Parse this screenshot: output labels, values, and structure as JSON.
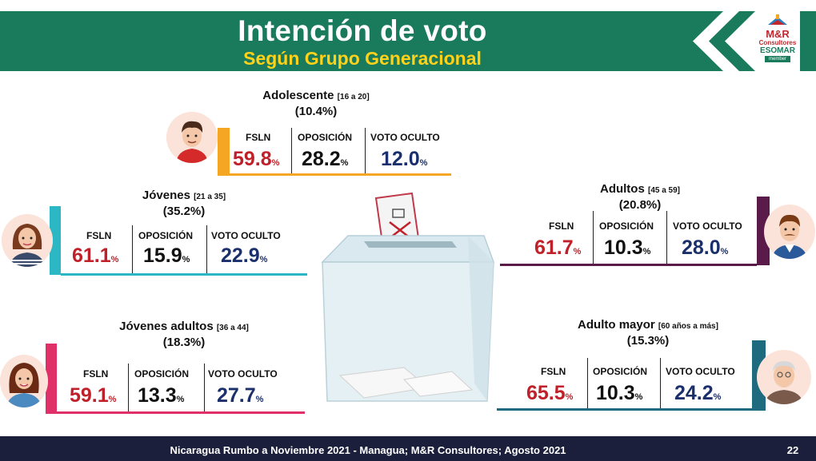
{
  "header": {
    "title": "Intención de voto",
    "subtitle": "Según Grupo Generacional",
    "logo_line1": "M&R",
    "logo_line2": "Consultores",
    "logo_line3": "ESOMAR",
    "logo_line4": "member"
  },
  "footer": {
    "source": "Nicaragua Rumbo a Noviembre 2021 - Managua; M&R Consultores; Agosto 2021",
    "page": "22"
  },
  "colors": {
    "header_green": "#1a7a5c",
    "subtitle_yellow": "#ffd21a",
    "fsln_red": "#c0202a",
    "oculto_blue": "#1a2f6b",
    "footer_navy": "#1b1f3b",
    "adolescente_accent": "#f5a623",
    "jovenes_accent": "#2bb8c4",
    "jovenes_adultos_accent": "#e0306a",
    "adultos_accent": "#5a1a4a",
    "adulto_mayor_accent": "#1e6b80"
  },
  "chart_data": {
    "type": "table",
    "unit": "%",
    "columns": [
      "FSLN",
      "OPOSICIÓN",
      "VOTO OCULTO"
    ],
    "groups": [
      {
        "name": "Adolescente",
        "range": "[16 a 20]",
        "share": "(10.4%)",
        "values": [
          59.8,
          28.2,
          12.0
        ]
      },
      {
        "name": "Jóvenes",
        "range": "[21 a 35]",
        "share": "(35.2%)",
        "values": [
          61.1,
          15.9,
          22.9
        ]
      },
      {
        "name": "Jóvenes adultos",
        "range": "[36 a 44]",
        "share": "(18.3%)",
        "values": [
          59.1,
          13.3,
          27.7
        ]
      },
      {
        "name": "Adultos",
        "range": "[45 a 59]",
        "share": "(20.8%)",
        "values": [
          61.7,
          10.3,
          28.0
        ]
      },
      {
        "name": "Adulto mayor",
        "range": "[60 años a más]",
        "share": "(15.3%)",
        "values": [
          65.5,
          10.3,
          24.2
        ]
      }
    ]
  },
  "display": {
    "adolescente": {
      "v0": "59.8",
      "v1": "28.2",
      "v2": "12.0"
    },
    "jovenes": {
      "v0": "61.1",
      "v1": "15.9",
      "v2": "22.9"
    },
    "jovenes_adultos": {
      "v0": "59.1",
      "v1": "13.3",
      "v2": "27.7"
    },
    "adultos": {
      "v0": "61.7",
      "v1": "10.3",
      "v2": "28.0"
    },
    "adulto_mayor": {
      "v0": "65.5",
      "v1": "10.3",
      "v2": "24.2"
    },
    "unit": "%"
  },
  "icons": [
    "ballot-box-icon",
    "ballot-paper-icon",
    "avatar-teen-boy",
    "avatar-young-woman",
    "avatar-woman",
    "avatar-man-mustache",
    "avatar-elderly-man"
  ]
}
